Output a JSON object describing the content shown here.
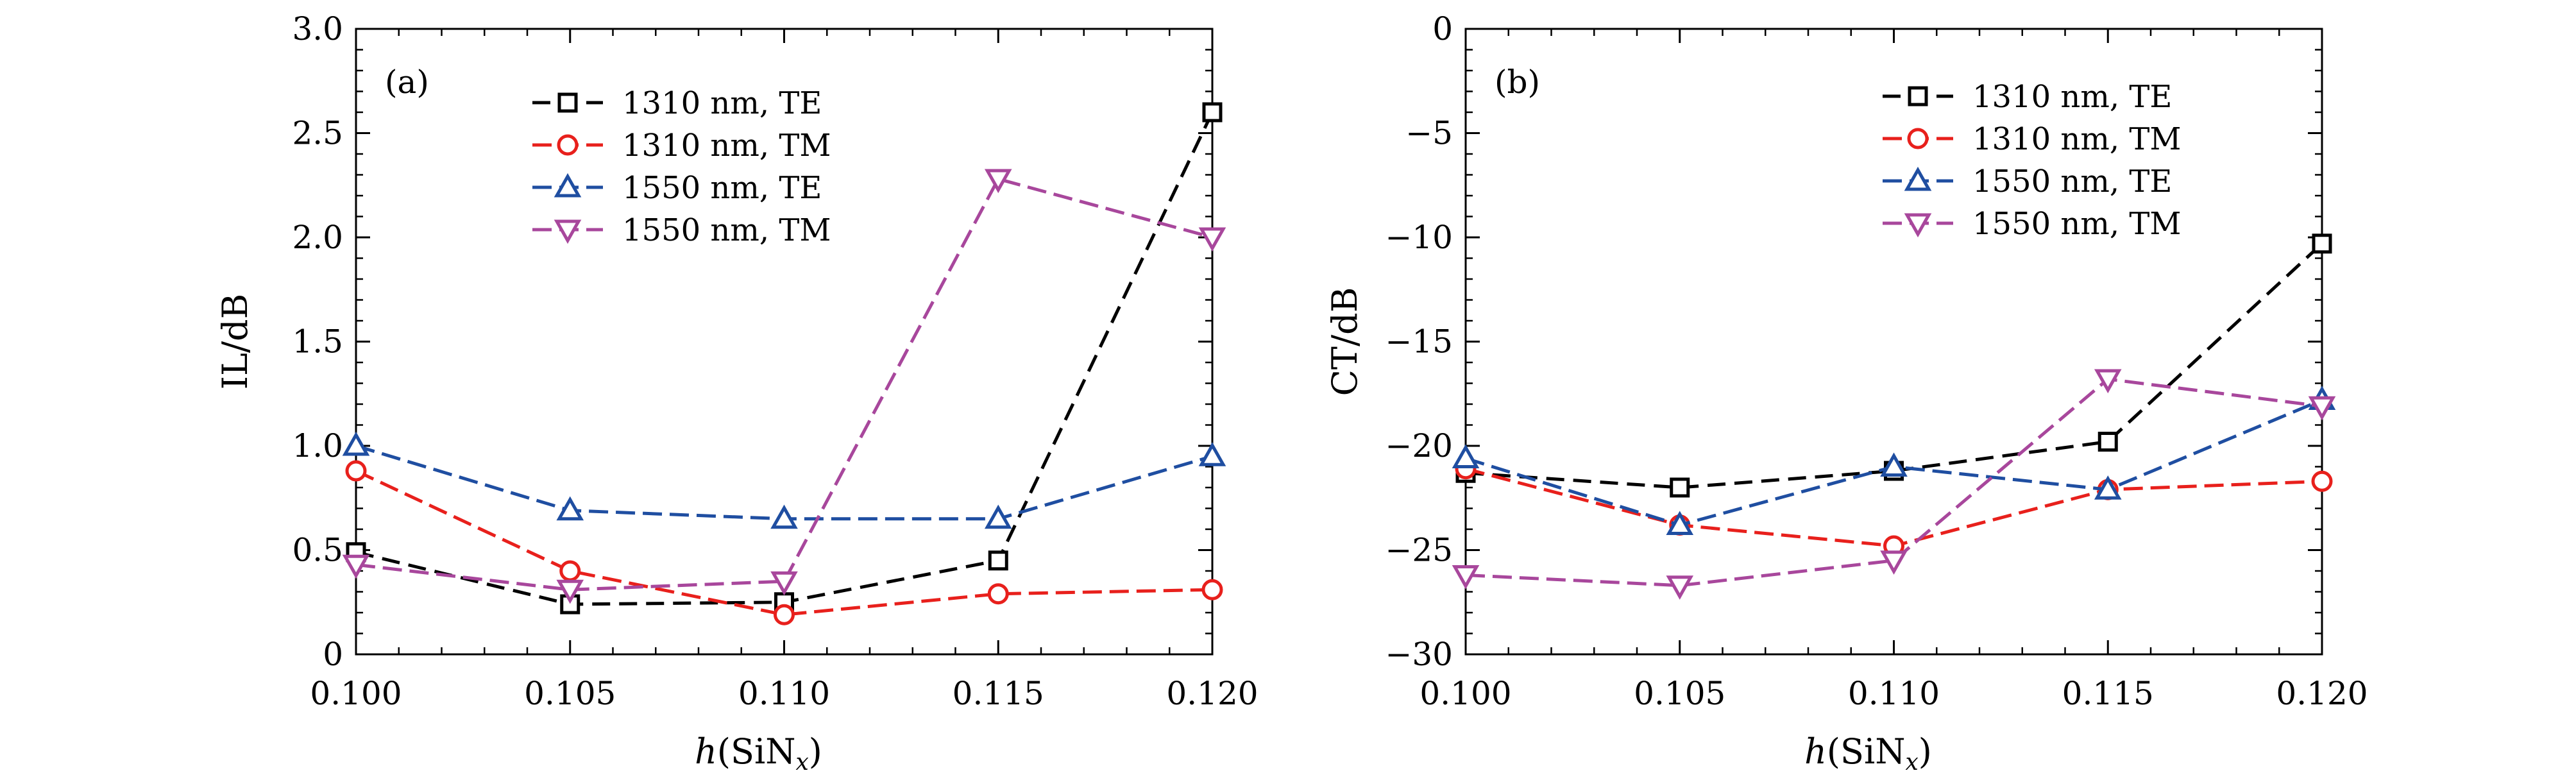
{
  "chart_data": [
    {
      "type": "line",
      "panel_label": "(a)",
      "xlabel": "h(SiN",
      "xlabel_sub": "x",
      "ylabel": "IL/dB",
      "xlim": [
        0.1,
        0.12
      ],
      "ylim": [
        0,
        3.0
      ],
      "x_ticks": [
        "0.100",
        "0.105",
        "0.110",
        "0.115",
        "0.120"
      ],
      "y_ticks": [
        "0",
        "0.5",
        "1.0",
        "1.5",
        "2.0",
        "2.5",
        "3.0"
      ],
      "grid": false,
      "legend_position": "top-center",
      "x": [
        0.1,
        0.105,
        0.11,
        0.115,
        0.12
      ],
      "series": [
        {
          "name": "1310 nm, TE",
          "color": "#000000",
          "marker": "square",
          "values": [
            0.49,
            0.24,
            0.25,
            0.45,
            2.6
          ]
        },
        {
          "name": "1310 nm, TM",
          "color": "#e8201c",
          "marker": "circle",
          "values": [
            0.88,
            0.4,
            0.19,
            0.29,
            0.31
          ]
        },
        {
          "name": "1550 nm, TE",
          "color": "#1f4ea1",
          "marker": "triangle-up",
          "values": [
            1.0,
            0.69,
            0.65,
            0.65,
            0.95
          ]
        },
        {
          "name": "1550 nm, TM",
          "color": "#a8479c",
          "marker": "triangle-down",
          "values": [
            0.43,
            0.31,
            0.35,
            2.28,
            2.0
          ]
        }
      ]
    },
    {
      "type": "line",
      "panel_label": "(b)",
      "xlabel": "h(SiN",
      "xlabel_sub": "x",
      "ylabel": "CT/dB",
      "xlim": [
        0.1,
        0.12
      ],
      "ylim": [
        -30,
        0
      ],
      "x_ticks": [
        "0.100",
        "0.105",
        "0.110",
        "0.115",
        "0.120"
      ],
      "y_ticks": [
        "−30",
        "−25",
        "−20",
        "−15",
        "−10",
        "−5",
        "0"
      ],
      "grid": false,
      "legend_position": "top-center",
      "x": [
        0.1,
        0.105,
        0.11,
        0.115,
        0.12
      ],
      "series": [
        {
          "name": "1310 nm, TE",
          "color": "#000000",
          "marker": "square",
          "values": [
            -21.3,
            -22.0,
            -21.2,
            -19.8,
            -10.3
          ]
        },
        {
          "name": "1310 nm, TM",
          "color": "#e8201c",
          "marker": "circle",
          "values": [
            -21.1,
            -23.8,
            -24.8,
            -22.1,
            -21.7
          ]
        },
        {
          "name": "1550 nm, TE",
          "color": "#1f4ea1",
          "marker": "triangle-up",
          "values": [
            -20.6,
            -23.8,
            -21.0,
            -22.1,
            -17.8
          ]
        },
        {
          "name": "1550 nm, TM",
          "color": "#a8479c",
          "marker": "triangle-down",
          "values": [
            -26.2,
            -26.7,
            -25.5,
            -16.8,
            -18.1
          ]
        }
      ]
    }
  ]
}
